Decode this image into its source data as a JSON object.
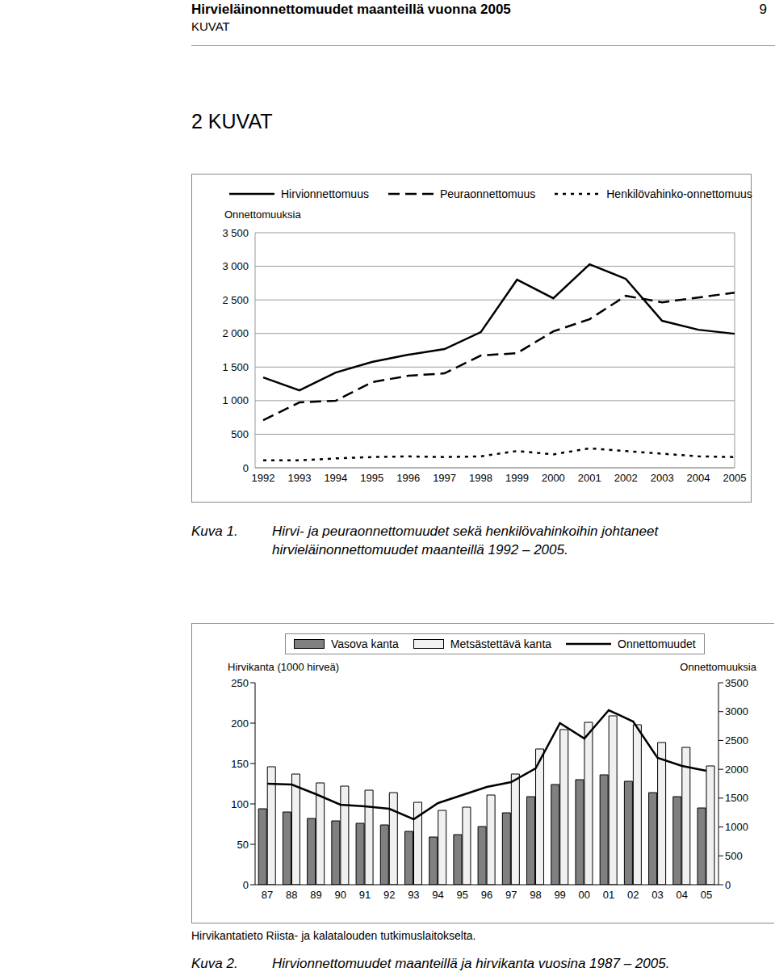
{
  "header": {
    "title": "Hirvieläinonnettomuudet maanteillä vuonna 2005",
    "section": "KUVAT",
    "page": "9"
  },
  "heading": "2 KUVAT",
  "figures": [
    {
      "label": "Kuva 1.",
      "caption": [
        "Hirvi- ja peuraonnettomuudet sekä henkilövahinkoihin johtaneet",
        "hirvieläinonnettomuudet maanteillä 1992 – 2005."
      ]
    },
    {
      "label": "Kuva 2.",
      "caption": [
        "Hirvionnettomuudet maanteillä ja hirvikanta vuosina 1987 – 2005."
      ],
      "source": "Hirvikantatieto Riista- ja kalatalouden tutkimuslaitokselta."
    }
  ],
  "chart_data": [
    {
      "type": "line",
      "y_label": "Onnettomuuksia",
      "categories": [
        "1992",
        "1993",
        "1994",
        "1995",
        "1996",
        "1997",
        "1998",
        "1999",
        "2000",
        "2001",
        "2002",
        "2003",
        "2004",
        "2005"
      ],
      "series": [
        {
          "name": "Hirvionnettomuus",
          "color": "#000000",
          "line_style": "solid",
          "values": [
            1346,
            1154,
            1418,
            1575,
            1683,
            1767,
            2019,
            2800,
            2524,
            3029,
            2812,
            2188,
            2055,
            1995
          ]
        },
        {
          "name": "Peuraonnettomuus",
          "color": "#000000",
          "line_style": "dashed",
          "values": [
            709,
            974,
            998,
            1274,
            1370,
            1406,
            1671,
            1707,
            2031,
            2212,
            2560,
            2464,
            2536,
            2608
          ]
        },
        {
          "name": "Henkilövahinko-onnettomuus",
          "color": "#000000",
          "line_style": "dotted",
          "values": [
            110,
            110,
            140,
            160,
            170,
            160,
            170,
            250,
            200,
            290,
            250,
            210,
            170,
            160
          ]
        }
      ],
      "ylim": [
        0,
        3500
      ],
      "yticks": [
        0,
        500,
        {
          "value": 1000,
          "label": "1 000"
        },
        {
          "value": 1500,
          "label": "1 500"
        },
        {
          "value": 2000,
          "label": "2 000"
        },
        {
          "value": 2500,
          "label": "2 500"
        },
        {
          "value": 3000,
          "label": "3 000"
        },
        {
          "value": 3500,
          "label": "3 500"
        }
      ],
      "grid": true,
      "legend": "top"
    },
    {
      "type": "bar",
      "y_label": "Hirvikanta (1000 hirveä)",
      "y2_label": "Onnettomuuksia",
      "categories": [
        "87",
        "88",
        "89",
        "90",
        "91",
        "92",
        "93",
        "94",
        "95",
        "96",
        "97",
        "98",
        "99",
        "00",
        "01",
        "02",
        "03",
        "04",
        "05"
      ],
      "series": [
        {
          "name": "Vasova kanta",
          "type": "bar",
          "color": "#808080",
          "values": [
            94,
            90,
            82,
            79,
            76,
            74,
            66,
            59,
            62,
            72,
            89,
            109,
            124,
            130,
            136,
            128,
            114,
            109,
            95
          ]
        },
        {
          "name": "Metsästettävä kanta",
          "type": "bar",
          "color": "#f0f0f0",
          "values": [
            146,
            137,
            126,
            122,
            117,
            114,
            102,
            92,
            96,
            111,
            137,
            168,
            192,
            201,
            209,
            198,
            176,
            170,
            147
          ]
        },
        {
          "name": "Onnettomuudet",
          "type": "line",
          "axis": "y2",
          "color": "#000000",
          "line_style": "solid",
          "values": [
            1750,
            1736,
            1568,
            1386,
            1358,
            1316,
            1134,
            1414,
            1554,
            1694,
            1778,
            2016,
            2800,
            2534,
            3024,
            2828,
            2198,
            2058,
            1974
          ]
        }
      ],
      "ylim": [
        0,
        250
      ],
      "yticks": [
        0,
        50,
        100,
        150,
        200,
        250
      ],
      "y2lim": [
        0,
        3500
      ],
      "y2ticks": [
        0,
        500,
        1000,
        1500,
        2000,
        2500,
        3000,
        3500
      ],
      "grid": false,
      "legend": "top"
    }
  ]
}
